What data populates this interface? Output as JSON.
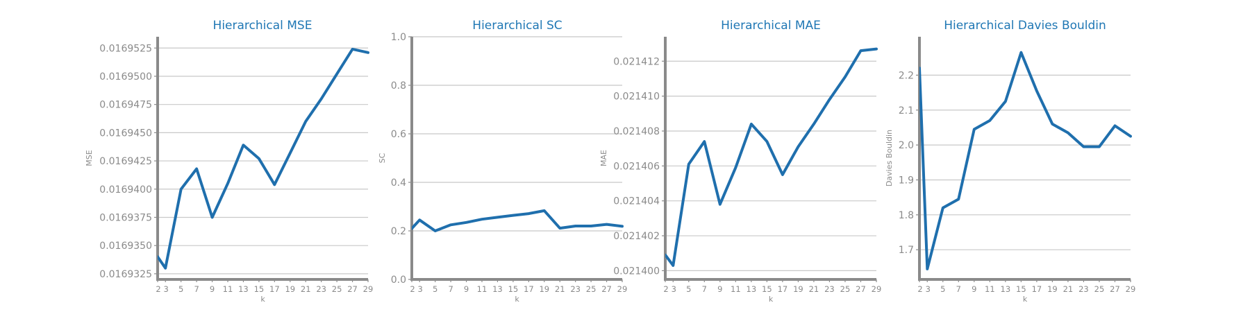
{
  "chart_data": [
    {
      "type": "line",
      "title": "Hierarchical MSE",
      "xlabel": "k",
      "ylabel": "MSE",
      "x": [
        2,
        3,
        5,
        7,
        9,
        11,
        13,
        15,
        17,
        19,
        21,
        23,
        25,
        27,
        29
      ],
      "xticks": [
        "2",
        "3",
        "5",
        "7",
        "9",
        "11",
        "13",
        "15",
        "17",
        "19",
        "21",
        "23",
        "25",
        "27",
        "29"
      ],
      "ylim": [
        0.016932,
        0.0169535
      ],
      "yticks": [
        "0.0169325",
        "0.0169350",
        "0.0169375",
        "0.0169400",
        "0.0169425",
        "0.0169450",
        "0.0169475",
        "0.0169500",
        "0.0169525"
      ],
      "grid": true,
      "color": "#1f6fad",
      "series": [
        {
          "values": [
            0.016934,
            0.016933,
            0.01694,
            0.0169418,
            0.0169375,
            0.0169405,
            0.0169439,
            0.0169427,
            0.0169404,
            0.0169432,
            0.016946,
            0.016948,
            0.0169502,
            0.0169524,
            0.0169521
          ]
        }
      ]
    },
    {
      "type": "line",
      "title": "Hierarchical SC",
      "xlabel": "k",
      "ylabel": "SC",
      "x": [
        2,
        3,
        5,
        7,
        9,
        11,
        13,
        15,
        17,
        19,
        21,
        23,
        25,
        27,
        29
      ],
      "xticks": [
        "2",
        "3",
        "5",
        "7",
        "9",
        "11",
        "13",
        "15",
        "17",
        "19",
        "21",
        "23",
        "25",
        "27",
        "29"
      ],
      "ylim": [
        0.0,
        1.0
      ],
      "yticks": [
        "0.0",
        "0.2",
        "0.4",
        "0.6",
        "0.8",
        "1.0"
      ],
      "grid": true,
      "color": "#1f6fad",
      "series": [
        {
          "values": [
            0.21,
            0.245,
            0.2,
            0.225,
            0.235,
            0.248,
            0.256,
            0.264,
            0.271,
            0.283,
            0.211,
            0.22,
            0.22,
            0.227,
            0.219
          ]
        }
      ]
    },
    {
      "type": "line",
      "title": "Hierarchical MAE",
      "xlabel": "k",
      "ylabel": "MAE",
      "x": [
        2,
        3,
        5,
        7,
        9,
        11,
        13,
        15,
        17,
        19,
        21,
        23,
        25,
        27,
        29
      ],
      "xticks": [
        "2",
        "3",
        "5",
        "7",
        "9",
        "11",
        "13",
        "15",
        "17",
        "19",
        "21",
        "23",
        "25",
        "27",
        "29"
      ],
      "ylim": [
        0.0213995,
        0.0214134
      ],
      "yticks": [
        "0.021400",
        "0.021402",
        "0.021404",
        "0.021406",
        "0.021408",
        "0.021410",
        "0.021412"
      ],
      "grid": true,
      "color": "#1f6fad",
      "series": [
        {
          "values": [
            0.0214009,
            0.0214003,
            0.0214061,
            0.0214074,
            0.0214038,
            0.0214059,
            0.0214084,
            0.0214074,
            0.0214055,
            0.0214071,
            0.0214084,
            0.0214098,
            0.0214111,
            0.0214126,
            0.0214127
          ]
        }
      ]
    },
    {
      "type": "line",
      "title": "Hierarchical Davies Bouldin",
      "xlabel": "k",
      "ylabel": "Davies Bouldin",
      "x": [
        2,
        3,
        5,
        7,
        9,
        11,
        13,
        15,
        17,
        19,
        21,
        23,
        25,
        27,
        29
      ],
      "xticks": [
        "2",
        "3",
        "5",
        "7",
        "9",
        "11",
        "13",
        "15",
        "17",
        "19",
        "21",
        "23",
        "25",
        "27",
        "29"
      ],
      "ylim": [
        1.615,
        2.31
      ],
      "yticks": [
        "1.7",
        "1.8",
        "1.9",
        "2.0",
        "2.1",
        "2.2"
      ],
      "grid": true,
      "color": "#1f6fad",
      "series": [
        {
          "values": [
            2.22,
            1.645,
            1.82,
            1.845,
            2.045,
            2.07,
            2.125,
            2.265,
            2.155,
            2.06,
            2.035,
            1.995,
            1.995,
            2.055,
            2.025
          ]
        }
      ]
    }
  ]
}
